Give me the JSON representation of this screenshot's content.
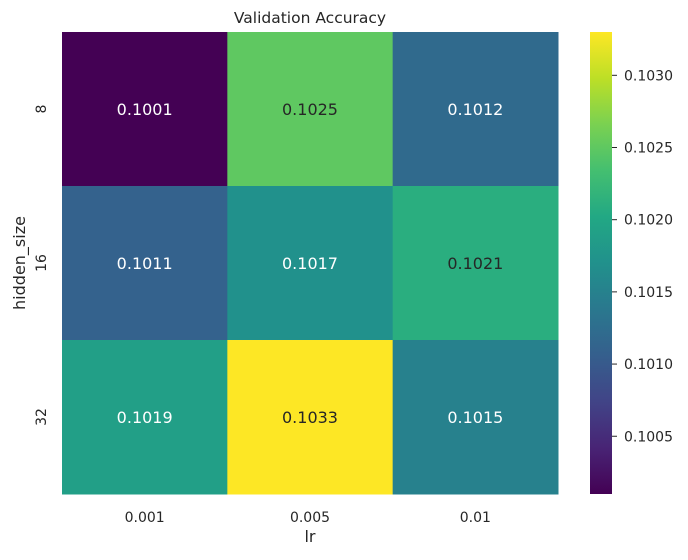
{
  "chart_data": {
    "type": "heatmap",
    "title": "Validation Accuracy",
    "xlabel": "lr",
    "ylabel": "hidden_size",
    "x_categories": [
      "0.001",
      "0.005",
      "0.01"
    ],
    "y_categories": [
      "8",
      "16",
      "32"
    ],
    "values": [
      [
        0.1001,
        0.1025,
        0.1012
      ],
      [
        0.1011,
        0.1017,
        0.1021
      ],
      [
        0.1019,
        0.1033,
        0.1015
      ]
    ],
    "value_labels": [
      [
        "0.1001",
        "0.1025",
        "0.1012"
      ],
      [
        "0.1011",
        "0.1017",
        "0.1021"
      ],
      [
        "0.1019",
        "0.1033",
        "0.1015"
      ]
    ],
    "colormap": "viridis",
    "color_range": [
      0.1001,
      0.1033
    ],
    "colorbar_ticks": [
      0.1005,
      0.101,
      0.1015,
      0.102,
      0.1025,
      0.103
    ],
    "colorbar_tick_labels": [
      "0.1005",
      "0.1010",
      "0.1015",
      "0.1020",
      "0.1025",
      "0.1030"
    ],
    "grid": false,
    "colorbar": "right"
  }
}
